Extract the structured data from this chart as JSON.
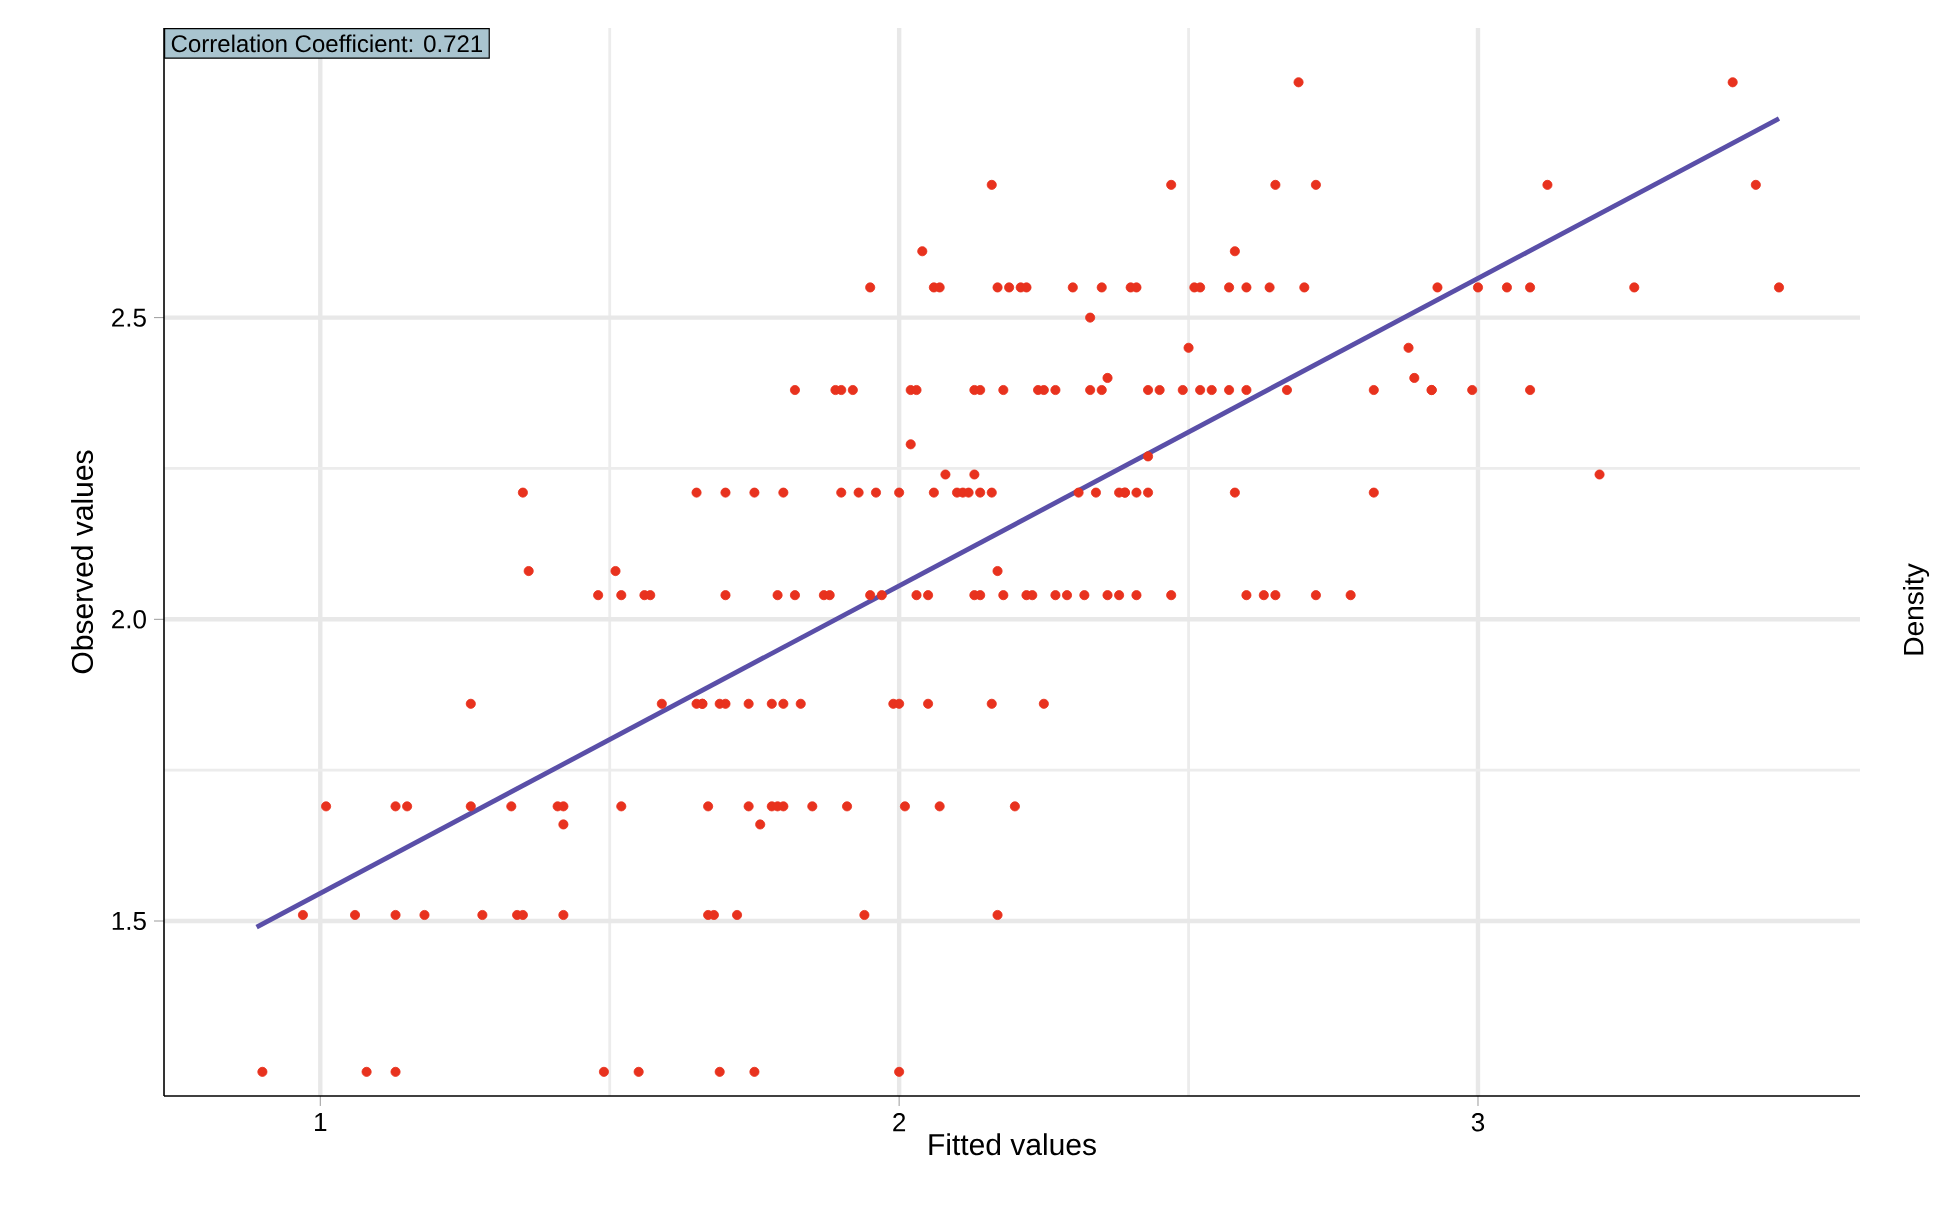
{
  "chart_data": {
    "type": "scatter",
    "xlabel": "Fitted values",
    "ylabel": "Observed values",
    "y2label": "Density",
    "annotations": [
      "Correlation Coefficient: 0.721"
    ],
    "xlim": [
      0.73,
      3.66
    ],
    "ylim": [
      1.21,
      2.98
    ],
    "xticks": [
      1,
      2,
      3
    ],
    "yticks": [
      1.5,
      {
        "value": 2,
        "label": "2.0"
      },
      2.5
    ],
    "grid": true,
    "series": [
      {
        "color": "#e8321e",
        "marker": "circle",
        "x": [
          0.9,
          1.08,
          1.13,
          1.49,
          1.55,
          1.69,
          1.75,
          2.0,
          0.97,
          1.06,
          1.13,
          1.18,
          1.28,
          1.34,
          1.35,
          1.42,
          1.67,
          1.68,
          1.72,
          1.94,
          2.17,
          1.42,
          1.76,
          1.01,
          1.13,
          1.15,
          1.26,
          1.33,
          1.41,
          1.42,
          1.52,
          1.67,
          1.74,
          1.78,
          1.79,
          1.8,
          1.85,
          1.91,
          2.01,
          2.07,
          2.2,
          1.26,
          1.59,
          1.65,
          1.66,
          1.66,
          1.69,
          1.7,
          1.74,
          1.78,
          1.8,
          1.83,
          1.99,
          2.0,
          2.05,
          2.16,
          2.25,
          1.48,
          1.52,
          1.56,
          1.57,
          1.7,
          1.79,
          1.82,
          1.87,
          1.88,
          1.95,
          1.97,
          2.03,
          2.05,
          2.13,
          2.14,
          2.18,
          2.22,
          2.23,
          2.27,
          2.29,
          2.32,
          2.36,
          2.38,
          2.41,
          2.47,
          2.6,
          2.63,
          2.65,
          2.72,
          2.78,
          1.36,
          1.51,
          2.17,
          1.35,
          1.65,
          1.7,
          1.75,
          1.8,
          1.9,
          1.93,
          1.96,
          2.0,
          2.06,
          2.1,
          2.11,
          2.12,
          2.14,
          2.16,
          2.31,
          2.34,
          2.38,
          2.39,
          2.39,
          2.41,
          2.43,
          2.58,
          2.82,
          2.08,
          2.13,
          3.21,
          2.43,
          2.02,
          1.82,
          1.89,
          1.9,
          1.92,
          2.02,
          2.03,
          2.13,
          2.14,
          2.18,
          2.24,
          2.25,
          2.27,
          2.33,
          2.35,
          2.43,
          2.45,
          2.49,
          2.52,
          2.54,
          2.57,
          2.6,
          2.67,
          2.82,
          2.92,
          2.92,
          2.99,
          3.09,
          2.36,
          2.89,
          2.5,
          2.88,
          2.33,
          1.95,
          2.06,
          2.07,
          2.17,
          2.19,
          2.21,
          2.22,
          2.3,
          2.35,
          2.4,
          2.41,
          2.51,
          2.52,
          2.57,
          2.6,
          2.64,
          2.7,
          2.93,
          3.0,
          3.05,
          3.09,
          3.27,
          3.52,
          2.04,
          2.58,
          2.16,
          2.47,
          2.65,
          2.72,
          3.12,
          3.48,
          2.69,
          3.44
        ],
        "values": [
          1.25,
          1.25,
          1.25,
          1.25,
          1.25,
          1.25,
          1.25,
          1.25,
          1.51,
          1.51,
          1.51,
          1.51,
          1.51,
          1.51,
          1.51,
          1.51,
          1.51,
          1.51,
          1.51,
          1.51,
          1.51,
          1.66,
          1.66,
          1.69,
          1.69,
          1.69,
          1.69,
          1.69,
          1.69,
          1.69,
          1.69,
          1.69,
          1.69,
          1.69,
          1.69,
          1.69,
          1.69,
          1.69,
          1.69,
          1.69,
          1.69,
          1.86,
          1.86,
          1.86,
          1.86,
          1.86,
          1.86,
          1.86,
          1.86,
          1.86,
          1.86,
          1.86,
          1.86,
          1.86,
          1.86,
          1.86,
          1.86,
          2.04,
          2.04,
          2.04,
          2.04,
          2.04,
          2.04,
          2.04,
          2.04,
          2.04,
          2.04,
          2.04,
          2.04,
          2.04,
          2.04,
          2.04,
          2.04,
          2.04,
          2.04,
          2.04,
          2.04,
          2.04,
          2.04,
          2.04,
          2.04,
          2.04,
          2.04,
          2.04,
          2.04,
          2.04,
          2.04,
          2.08,
          2.08,
          2.08,
          2.21,
          2.21,
          2.21,
          2.21,
          2.21,
          2.21,
          2.21,
          2.21,
          2.21,
          2.21,
          2.21,
          2.21,
          2.21,
          2.21,
          2.21,
          2.21,
          2.21,
          2.21,
          2.21,
          2.21,
          2.21,
          2.21,
          2.21,
          2.21,
          2.24,
          2.24,
          2.24,
          2.27,
          2.29,
          2.38,
          2.38,
          2.38,
          2.38,
          2.38,
          2.38,
          2.38,
          2.38,
          2.38,
          2.38,
          2.38,
          2.38,
          2.38,
          2.38,
          2.38,
          2.38,
          2.38,
          2.38,
          2.38,
          2.38,
          2.38,
          2.38,
          2.38,
          2.38,
          2.38,
          2.38,
          2.38,
          2.4,
          2.4,
          2.45,
          2.45,
          2.5,
          2.55,
          2.55,
          2.55,
          2.55,
          2.55,
          2.55,
          2.55,
          2.55,
          2.55,
          2.55,
          2.55,
          2.55,
          2.55,
          2.55,
          2.55,
          2.55,
          2.55,
          2.55,
          2.55,
          2.55,
          2.55,
          2.55,
          2.55,
          2.61,
          2.61,
          2.72,
          2.72,
          2.72,
          2.72,
          2.72,
          2.72,
          2.89,
          2.89
        ]
      },
      {
        "type": "line",
        "color": "#5a4fa8",
        "marker": "none",
        "line_style": "solid",
        "x": [
          0.89,
          3.52
        ],
        "values": [
          1.49,
          2.83
        ]
      }
    ]
  }
}
